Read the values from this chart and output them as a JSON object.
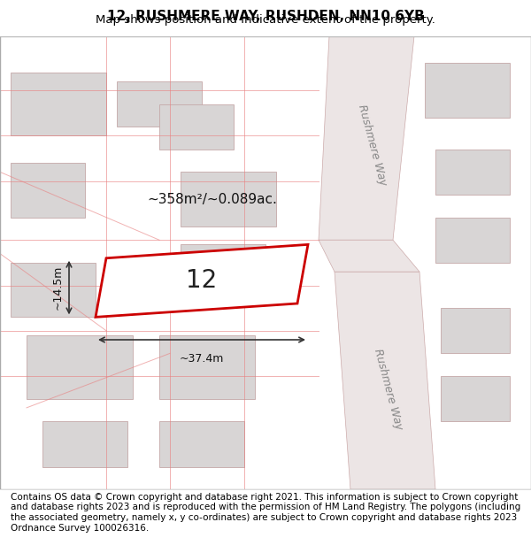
{
  "title_line1": "12, RUSHMERE WAY, RUSHDEN, NN10 6YB",
  "title_line2": "Map shows position and indicative extent of the property.",
  "footer_text": "Contains OS data © Crown copyright and database right 2021. This information is subject to Crown copyright and database rights 2023 and is reproduced with the permission of HM Land Registry. The polygons (including the associated geometry, namely x, y co-ordinates) are subject to Crown copyright and database rights 2023 Ordnance Survey 100026316.",
  "bg_color": "#f5f0f0",
  "map_bg": "#ffffff",
  "building_fill": "#d8d8d8",
  "building_edge": "#c0b0b0",
  "road_fill": "#e8e0e0",
  "road_line": "#d0c0c0",
  "plot_edge": "#cc0000",
  "plot_fill": "#ffffff",
  "plot_label": "12",
  "area_label": "~358m²/~0.089ac.",
  "width_label": "~37.4m",
  "height_label": "~14.5m",
  "street_label": "Rushmere Way",
  "title_fontsize": 11,
  "subtitle_fontsize": 9.5,
  "footer_fontsize": 7.5
}
